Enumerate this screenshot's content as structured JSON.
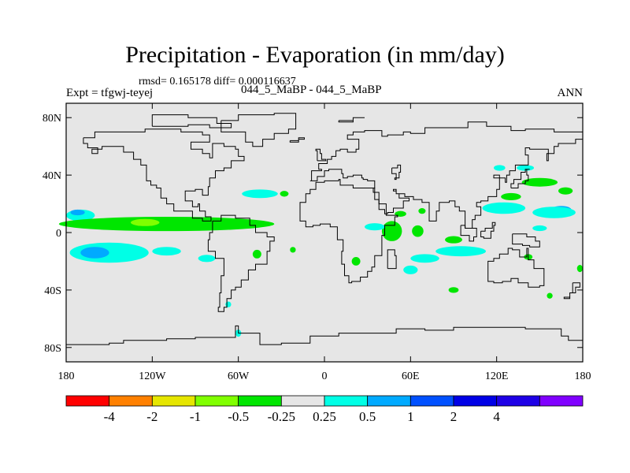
{
  "title": "Precipitation - Evaporation (in mm/day)",
  "stats": "rmsd= 0.165178 diff= 0.000116637",
  "experiment": "Expt = tfgwj-teyej",
  "cases": "044_5_MaBP - 044_5_MaBP",
  "period": "ANN",
  "map": {
    "projection": "cylindrical-equidistant",
    "lon_range": [
      -180,
      180
    ],
    "lat_range": [
      -90,
      90
    ],
    "background": "#e6e6e6",
    "coastline_color": "#000000",
    "lon_ticks": [
      {
        "value": -180,
        "label": "180"
      },
      {
        "value": -120,
        "label": "120W"
      },
      {
        "value": -60,
        "label": "60W"
      },
      {
        "value": 0,
        "label": "0"
      },
      {
        "value": 60,
        "label": "60E"
      },
      {
        "value": 120,
        "label": "120E"
      },
      {
        "value": 180,
        "label": "180"
      }
    ],
    "lat_ticks": [
      {
        "value": 80,
        "label": "80N"
      },
      {
        "value": 40,
        "label": "40N"
      },
      {
        "value": 0,
        "label": "0"
      },
      {
        "value": -40,
        "label": "40S"
      },
      {
        "value": -80,
        "label": "80S"
      }
    ]
  },
  "colorbar": {
    "colors": [
      "#ff0000",
      "#ff8000",
      "#e6e600",
      "#80ff00",
      "#00e600",
      "#e6e6e6",
      "#00ffe6",
      "#00aaff",
      "#0050ff",
      "#0000e6",
      "#1e00e6",
      "#8000ff"
    ],
    "labels": [
      "-4",
      "-2",
      "-1",
      "-0.5",
      "-0.25",
      "0.25",
      "0.5",
      "1",
      "2",
      "4"
    ]
  },
  "anomalies": [
    {
      "type": "cyan",
      "lon": -170,
      "lat": 12,
      "w": 20,
      "h": 8
    },
    {
      "type": "blue",
      "lon": -172,
      "lat": 14,
      "w": 10,
      "h": 4
    },
    {
      "type": "green",
      "lon": -110,
      "lat": 6,
      "w": 150,
      "h": 10
    },
    {
      "type": "lgreen",
      "lon": -125,
      "lat": 7,
      "w": 20,
      "h": 5
    },
    {
      "type": "cyan",
      "lon": -150,
      "lat": -14,
      "w": 55,
      "h": 14
    },
    {
      "type": "blue",
      "lon": -160,
      "lat": -14,
      "w": 20,
      "h": 8
    },
    {
      "type": "cyan",
      "lon": -110,
      "lat": -13,
      "w": 20,
      "h": 6
    },
    {
      "type": "cyan",
      "lon": -82,
      "lat": -18,
      "w": 12,
      "h": 5
    },
    {
      "type": "cyan",
      "lon": -45,
      "lat": 27,
      "w": 25,
      "h": 6
    },
    {
      "type": "green",
      "lon": -28,
      "lat": 27,
      "w": 6,
      "h": 4
    },
    {
      "type": "green",
      "lon": -47,
      "lat": -15,
      "w": 6,
      "h": 6
    },
    {
      "type": "green",
      "lon": -22,
      "lat": -12,
      "w": 4,
      "h": 4
    },
    {
      "type": "cyan",
      "lon": -67,
      "lat": -50,
      "w": 4,
      "h": 4
    },
    {
      "type": "cyan",
      "lon": -60,
      "lat": -70,
      "w": 4,
      "h": 5
    },
    {
      "type": "green",
      "lon": 47,
      "lat": 1,
      "w": 14,
      "h": 14
    },
    {
      "type": "green",
      "lon": 65,
      "lat": 1,
      "w": 8,
      "h": 8
    },
    {
      "type": "cyan",
      "lon": 35,
      "lat": 4,
      "w": 14,
      "h": 5
    },
    {
      "type": "green",
      "lon": 22,
      "lat": -20,
      "w": 6,
      "h": 6
    },
    {
      "type": "green",
      "lon": 53,
      "lat": 13,
      "w": 8,
      "h": 4
    },
    {
      "type": "green",
      "lon": 68,
      "lat": 15,
      "w": 5,
      "h": 4
    },
    {
      "type": "cyan",
      "lon": 60,
      "lat": -26,
      "w": 10,
      "h": 6
    },
    {
      "type": "cyan",
      "lon": 70,
      "lat": -18,
      "w": 20,
      "h": 6
    },
    {
      "type": "cyan",
      "lon": 95,
      "lat": -13,
      "w": 35,
      "h": 7
    },
    {
      "type": "green",
      "lon": 90,
      "lat": -5,
      "w": 12,
      "h": 5
    },
    {
      "type": "green",
      "lon": 90,
      "lat": -40,
      "w": 7,
      "h": 4
    },
    {
      "type": "cyan",
      "lon": 125,
      "lat": 17,
      "w": 30,
      "h": 8
    },
    {
      "type": "blue",
      "lon": 165,
      "lat": 16,
      "w": 14,
      "h": 5
    },
    {
      "type": "cyan",
      "lon": 160,
      "lat": 14,
      "w": 30,
      "h": 8
    },
    {
      "type": "green",
      "lon": 150,
      "lat": 35,
      "w": 25,
      "h": 6
    },
    {
      "type": "green",
      "lon": 168,
      "lat": 29,
      "w": 10,
      "h": 5
    },
    {
      "type": "cyan",
      "lon": 122,
      "lat": 45,
      "w": 8,
      "h": 4
    },
    {
      "type": "cyan",
      "lon": 140,
      "lat": 45,
      "w": 12,
      "h": 4
    },
    {
      "type": "green",
      "lon": 130,
      "lat": 25,
      "w": 14,
      "h": 5
    },
    {
      "type": "cyan",
      "lon": 150,
      "lat": 3,
      "w": 10,
      "h": 4
    },
    {
      "type": "green",
      "lon": 142,
      "lat": -17,
      "w": 6,
      "h": 4
    },
    {
      "type": "green",
      "lon": 178,
      "lat": -25,
      "w": 4,
      "h": 5
    },
    {
      "type": "green",
      "lon": 157,
      "lat": -44,
      "w": 4,
      "h": 4
    }
  ]
}
